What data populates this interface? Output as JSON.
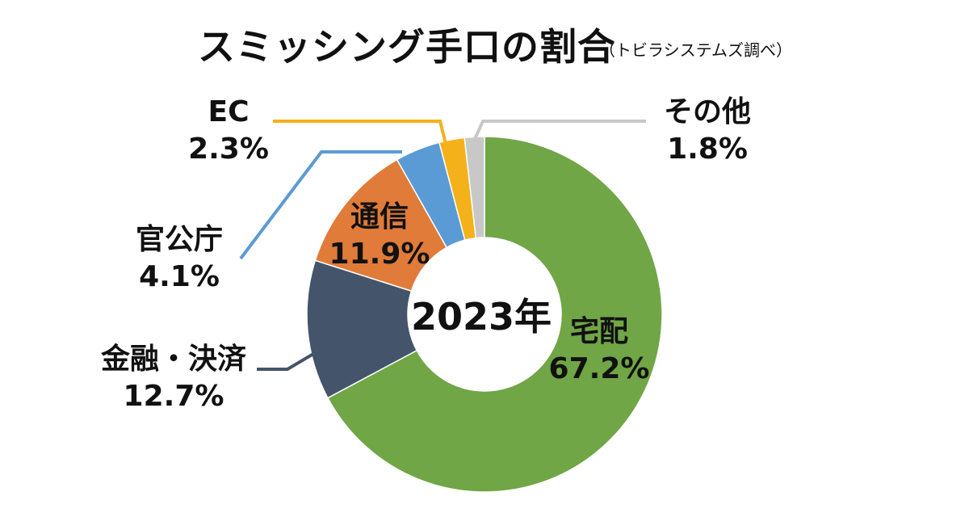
{
  "chart_data": {
    "type": "pie",
    "variant": "donut",
    "title": "スミッシング手口の割合",
    "subtitle": "（トビラシステムズ調べ）",
    "center_label": "2023年",
    "slices": [
      {
        "label": "宅配",
        "value": 67.2,
        "value_text": "67.2%",
        "color": "#70a646"
      },
      {
        "label": "金融・決済",
        "value": 12.7,
        "value_text": "12.7%",
        "color": "#44546a"
      },
      {
        "label": "通信",
        "value": 11.9,
        "value_text": "11.9%",
        "color": "#e07b39"
      },
      {
        "label": "官公庁",
        "value": 4.1,
        "value_text": "4.1%",
        "color": "#5b9bd5"
      },
      {
        "label": "EC",
        "value": 2.3,
        "value_text": "2.3%",
        "color": "#f4b11a"
      },
      {
        "label": "その他",
        "value": 1.8,
        "value_text": "1.8%",
        "color": "#c8c8c8"
      }
    ]
  }
}
